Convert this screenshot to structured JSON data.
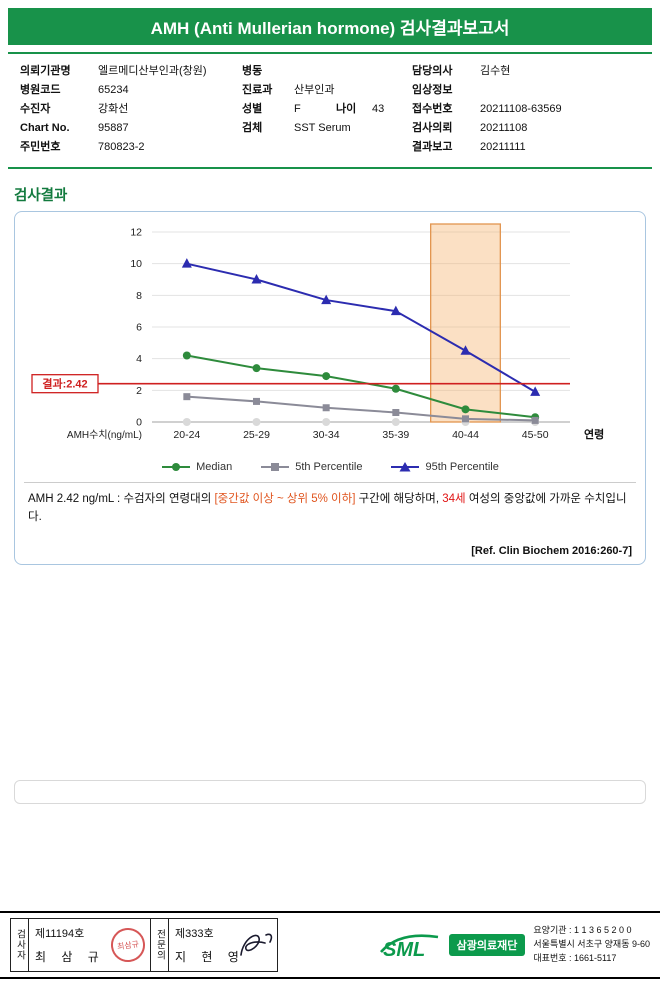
{
  "header": {
    "title": "AMH (Anti Mullerian hormone) 검사결과보고서",
    "banner_color": "#18924a"
  },
  "patient_info": {
    "left": [
      {
        "label": "의뢰기관명",
        "value": "엘르메디산부인과(창원)"
      },
      {
        "label": "병원코드",
        "value": "65234"
      },
      {
        "label": "수진자",
        "value": "강화선"
      },
      {
        "label": "Chart No.",
        "value": "95887"
      },
      {
        "label": "주민번호",
        "value": "780823-2"
      }
    ],
    "middle": [
      {
        "label": "병동",
        "value": ""
      },
      {
        "label": "진료과",
        "value": "산부인과"
      },
      {
        "label": "성별",
        "value": "F",
        "label2": "나이",
        "value2": "43"
      },
      {
        "label": "검체",
        "value": "SST Serum"
      }
    ],
    "right": [
      {
        "label": "담당의사",
        "value": "김수현"
      },
      {
        "label": "임상정보",
        "value": ""
      },
      {
        "label": "접수번호",
        "value": "20211108-63569"
      },
      {
        "label": "검사의뢰",
        "value": "20211108"
      },
      {
        "label": "결과보고",
        "value": "20211111"
      }
    ]
  },
  "results": {
    "heading": "검사결과",
    "reference": "[Ref. Clin Biochem 2016:260-7]"
  },
  "chart_data": {
    "type": "line",
    "categories": [
      "20-24",
      "25-29",
      "30-34",
      "35-39",
      "40-44",
      "45-50"
    ],
    "series": [
      {
        "name": "Median",
        "marker": "circle",
        "color": "#2e8b3c",
        "values": [
          4.2,
          3.4,
          2.9,
          2.1,
          0.8,
          0.3
        ]
      },
      {
        "name": "5th Percentile",
        "marker": "square",
        "color": "#8b8b98",
        "values": [
          1.6,
          1.3,
          0.9,
          0.6,
          0.2,
          0.1
        ]
      },
      {
        "name": "95th Percentile",
        "marker": "triangle",
        "color": "#2c2cb0",
        "values": [
          10.0,
          9.0,
          7.7,
          7.0,
          4.5,
          1.9
        ]
      }
    ],
    "xlabel": "연령",
    "ylabel": "AMH수치(ng/mL)",
    "ylim": [
      0,
      12
    ],
    "yticks": [
      0,
      2,
      4,
      6,
      8,
      10,
      12
    ],
    "grid": true,
    "legend_position": "bottom",
    "result_line": {
      "value": 2.42,
      "label": "결과:2.42",
      "color": "#cf2020"
    },
    "highlight": {
      "category": "40-44",
      "fill": "#f6b26b",
      "stroke": "#e2954f"
    }
  },
  "interpretation": {
    "parts": [
      {
        "text": "AMH  2.42 ng/mL : 수검자의 연령대의 "
      },
      {
        "text": "[중간값 이상 ~ 상위 5% 이하]"
      },
      {
        "text": " 구간에 해당하며, "
      },
      {
        "text": "34세"
      },
      {
        "text": " 여성의 중앙값에 가까운 수치입니다."
      }
    ],
    "highlight_orange": "#e0551f",
    "highlight_red": "#e01414"
  },
  "footer": {
    "examiner": {
      "role": "검사자",
      "license": "제11194호",
      "name": "최 삼 규",
      "stamp": "최삼규"
    },
    "specialist": {
      "role": "전문의",
      "license": "제333호",
      "name": "지 현 영"
    },
    "logo_text": "SML",
    "org_name": "삼광의료재단",
    "org_color": "#0c9a4c",
    "address": {
      "line1": "요양기관 : 1 1 3 6 5 2 0 0",
      "line2": "서울특별시 서초구 양재동 9-60",
      "line3": "대표번호 : 1661-5117"
    }
  }
}
